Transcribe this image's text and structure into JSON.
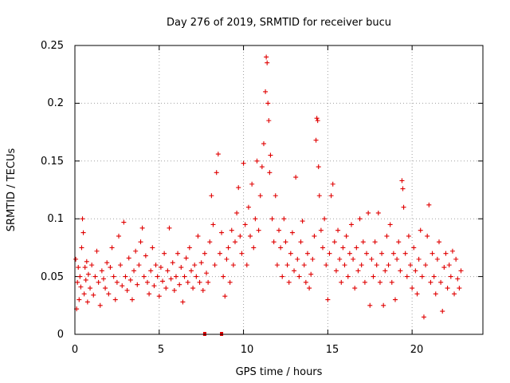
{
  "chart_data": {
    "type": "scatter",
    "title": "Day 276 of 2019, SRMTID for receiver bucu",
    "xlabel": "GPS time / hours",
    "ylabel": "SRMTID / TECUs",
    "xlim": [
      0,
      24.2
    ],
    "ylim": [
      0,
      0.25
    ],
    "xticks": [
      "0",
      "5",
      "10",
      "15",
      "20"
    ],
    "yticks": [
      "0",
      "0.05",
      "0.1",
      "0.15",
      "0.2",
      "0.25"
    ],
    "grid": true,
    "series_color": "#e00000",
    "zero_markers_hours": [
      7.7,
      8.7
    ],
    "series": [
      {
        "name": "SRMTID",
        "points": [
          [
            0.05,
            0.065
          ],
          [
            0.1,
            0.022
          ],
          [
            0.15,
            0.045
          ],
          [
            0.2,
            0.058
          ],
          [
            0.25,
            0.03
          ],
          [
            0.3,
            0.05
          ],
          [
            0.35,
            0.041
          ],
          [
            0.4,
            0.075
          ],
          [
            0.45,
            0.1
          ],
          [
            0.5,
            0.088
          ],
          [
            0.55,
            0.035
          ],
          [
            0.6,
            0.058
          ],
          [
            0.65,
            0.047
          ],
          [
            0.7,
            0.063
          ],
          [
            0.75,
            0.028
          ],
          [
            0.8,
            0.052
          ],
          [
            0.9,
            0.04
          ],
          [
            1.0,
            0.06
          ],
          [
            1.1,
            0.034
          ],
          [
            1.2,
            0.05
          ],
          [
            1.3,
            0.072
          ],
          [
            1.4,
            0.045
          ],
          [
            1.5,
            0.025
          ],
          [
            1.6,
            0.055
          ],
          [
            1.7,
            0.048
          ],
          [
            1.8,
            0.04
          ],
          [
            1.9,
            0.062
          ],
          [
            2.0,
            0.035
          ],
          [
            2.1,
            0.058
          ],
          [
            2.2,
            0.075
          ],
          [
            2.3,
            0.05
          ],
          [
            2.4,
            0.03
          ],
          [
            2.5,
            0.045
          ],
          [
            2.6,
            0.085
          ],
          [
            2.7,
            0.06
          ],
          [
            2.8,
            0.042
          ],
          [
            2.9,
            0.097
          ],
          [
            3.0,
            0.05
          ],
          [
            3.1,
            0.038
          ],
          [
            3.2,
            0.066
          ],
          [
            3.3,
            0.047
          ],
          [
            3.4,
            0.03
          ],
          [
            3.5,
            0.055
          ],
          [
            3.6,
            0.072
          ],
          [
            3.7,
            0.043
          ],
          [
            3.8,
            0.06
          ],
          [
            3.9,
            0.08
          ],
          [
            4.0,
            0.092
          ],
          [
            4.1,
            0.05
          ],
          [
            4.2,
            0.068
          ],
          [
            4.3,
            0.045
          ],
          [
            4.4,
            0.035
          ],
          [
            4.5,
            0.055
          ],
          [
            4.6,
            0.075
          ],
          [
            4.7,
            0.042
          ],
          [
            4.8,
            0.06
          ],
          [
            4.9,
            0.05
          ],
          [
            5.0,
            0.033
          ],
          [
            5.1,
            0.058
          ],
          [
            5.2,
            0.046
          ],
          [
            5.3,
            0.07
          ],
          [
            5.4,
            0.04
          ],
          [
            5.5,
            0.055
          ],
          [
            5.6,
            0.092
          ],
          [
            5.7,
            0.048
          ],
          [
            5.8,
            0.062
          ],
          [
            5.9,
            0.038
          ],
          [
            6.0,
            0.05
          ],
          [
            6.1,
            0.07
          ],
          [
            6.2,
            0.043
          ],
          [
            6.3,
            0.058
          ],
          [
            6.4,
            0.028
          ],
          [
            6.5,
            0.05
          ],
          [
            6.6,
            0.066
          ],
          [
            6.7,
            0.045
          ],
          [
            6.8,
            0.075
          ],
          [
            6.9,
            0.055
          ],
          [
            7.0,
            0.04
          ],
          [
            7.1,
            0.06
          ],
          [
            7.2,
            0.05
          ],
          [
            7.3,
            0.085
          ],
          [
            7.4,
            0.045
          ],
          [
            7.5,
            0.062
          ],
          [
            7.6,
            0.038
          ],
          [
            7.7,
            0.07
          ],
          [
            7.8,
            0.053
          ],
          [
            7.9,
            0.045
          ],
          [
            8.0,
            0.08
          ],
          [
            8.1,
            0.12
          ],
          [
            8.2,
            0.095
          ],
          [
            8.3,
            0.06
          ],
          [
            8.4,
            0.14
          ],
          [
            8.5,
            0.156
          ],
          [
            8.6,
            0.07
          ],
          [
            8.7,
            0.088
          ],
          [
            8.8,
            0.05
          ],
          [
            8.9,
            0.033
          ],
          [
            9.0,
            0.065
          ],
          [
            9.1,
            0.075
          ],
          [
            9.2,
            0.045
          ],
          [
            9.3,
            0.09
          ],
          [
            9.4,
            0.06
          ],
          [
            9.5,
            0.08
          ],
          [
            9.6,
            0.105
          ],
          [
            9.7,
            0.127
          ],
          [
            9.8,
            0.085
          ],
          [
            9.9,
            0.07
          ],
          [
            10.0,
            0.148
          ],
          [
            10.1,
            0.095
          ],
          [
            10.2,
            0.06
          ],
          [
            10.3,
            0.11
          ],
          [
            10.4,
            0.085
          ],
          [
            10.5,
            0.13
          ],
          [
            10.6,
            0.075
          ],
          [
            10.7,
            0.1
          ],
          [
            10.8,
            0.15
          ],
          [
            10.9,
            0.09
          ],
          [
            11.0,
            0.12
          ],
          [
            11.1,
            0.145
          ],
          [
            11.2,
            0.165
          ],
          [
            11.3,
            0.21
          ],
          [
            11.35,
            0.24
          ],
          [
            11.4,
            0.235
          ],
          [
            11.45,
            0.2
          ],
          [
            11.5,
            0.185
          ],
          [
            11.55,
            0.14
          ],
          [
            11.6,
            0.155
          ],
          [
            11.7,
            0.1
          ],
          [
            11.8,
            0.08
          ],
          [
            11.9,
            0.12
          ],
          [
            12.0,
            0.06
          ],
          [
            12.1,
            0.09
          ],
          [
            12.2,
            0.075
          ],
          [
            12.3,
            0.05
          ],
          [
            12.4,
            0.1
          ],
          [
            12.5,
            0.08
          ],
          [
            12.6,
            0.06
          ],
          [
            12.7,
            0.045
          ],
          [
            12.8,
            0.07
          ],
          [
            12.9,
            0.088
          ],
          [
            13.0,
            0.055
          ],
          [
            13.1,
            0.136
          ],
          [
            13.2,
            0.065
          ],
          [
            13.3,
            0.05
          ],
          [
            13.4,
            0.08
          ],
          [
            13.5,
            0.098
          ],
          [
            13.6,
            0.06
          ],
          [
            13.7,
            0.045
          ],
          [
            13.8,
            0.07
          ],
          [
            13.9,
            0.04
          ],
          [
            14.0,
            0.052
          ],
          [
            14.1,
            0.065
          ],
          [
            14.2,
            0.085
          ],
          [
            14.3,
            0.168
          ],
          [
            14.35,
            0.187
          ],
          [
            14.4,
            0.185
          ],
          [
            14.45,
            0.145
          ],
          [
            14.5,
            0.12
          ],
          [
            14.6,
            0.09
          ],
          [
            14.7,
            0.075
          ],
          [
            14.8,
            0.1
          ],
          [
            14.9,
            0.06
          ],
          [
            15.0,
            0.03
          ],
          [
            15.1,
            0.07
          ],
          [
            15.2,
            0.12
          ],
          [
            15.3,
            0.13
          ],
          [
            15.4,
            0.08
          ],
          [
            15.5,
            0.055
          ],
          [
            15.6,
            0.09
          ],
          [
            15.7,
            0.065
          ],
          [
            15.8,
            0.045
          ],
          [
            15.9,
            0.075
          ],
          [
            16.0,
            0.06
          ],
          [
            16.1,
            0.085
          ],
          [
            16.2,
            0.05
          ],
          [
            16.3,
            0.07
          ],
          [
            16.4,
            0.095
          ],
          [
            16.5,
            0.065
          ],
          [
            16.6,
            0.04
          ],
          [
            16.7,
            0.075
          ],
          [
            16.8,
            0.055
          ],
          [
            16.9,
            0.1
          ],
          [
            17.0,
            0.06
          ],
          [
            17.1,
            0.08
          ],
          [
            17.2,
            0.045
          ],
          [
            17.3,
            0.07
          ],
          [
            17.4,
            0.105
          ],
          [
            17.5,
            0.025
          ],
          [
            17.6,
            0.065
          ],
          [
            17.7,
            0.05
          ],
          [
            17.8,
            0.08
          ],
          [
            17.9,
            0.06
          ],
          [
            18.0,
            0.105
          ],
          [
            18.1,
            0.045
          ],
          [
            18.2,
            0.07
          ],
          [
            18.3,
            0.025
          ],
          [
            18.4,
            0.055
          ],
          [
            18.5,
            0.085
          ],
          [
            18.6,
            0.06
          ],
          [
            18.7,
            0.095
          ],
          [
            18.8,
            0.045
          ],
          [
            18.9,
            0.07
          ],
          [
            19.0,
            0.03
          ],
          [
            19.1,
            0.065
          ],
          [
            19.2,
            0.08
          ],
          [
            19.3,
            0.055
          ],
          [
            19.4,
            0.133
          ],
          [
            19.45,
            0.126
          ],
          [
            19.5,
            0.11
          ],
          [
            19.6,
            0.07
          ],
          [
            19.7,
            0.05
          ],
          [
            19.8,
            0.085
          ],
          [
            19.9,
            0.06
          ],
          [
            20.0,
            0.04
          ],
          [
            20.1,
            0.075
          ],
          [
            20.2,
            0.055
          ],
          [
            20.3,
            0.035
          ],
          [
            20.4,
            0.065
          ],
          [
            20.5,
            0.09
          ],
          [
            20.6,
            0.05
          ],
          [
            20.7,
            0.015
          ],
          [
            20.8,
            0.06
          ],
          [
            20.9,
            0.085
          ],
          [
            21.0,
            0.112
          ],
          [
            21.1,
            0.045
          ],
          [
            21.2,
            0.07
          ],
          [
            21.3,
            0.05
          ],
          [
            21.4,
            0.035
          ],
          [
            21.5,
            0.065
          ],
          [
            21.6,
            0.08
          ],
          [
            21.7,
            0.045
          ],
          [
            21.8,
            0.02
          ],
          [
            21.9,
            0.058
          ],
          [
            22.0,
            0.07
          ],
          [
            22.1,
            0.04
          ],
          [
            22.2,
            0.06
          ],
          [
            22.3,
            0.05
          ],
          [
            22.4,
            0.072
          ],
          [
            22.5,
            0.035
          ],
          [
            22.6,
            0.065
          ],
          [
            22.7,
            0.048
          ],
          [
            22.8,
            0.04
          ],
          [
            22.9,
            0.055
          ]
        ]
      }
    ]
  }
}
